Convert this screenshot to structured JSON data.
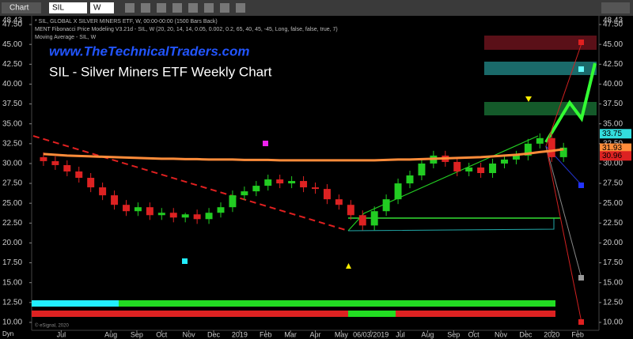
{
  "toolbar": {
    "app": "Chart",
    "symbol": "SIL",
    "interval": "W"
  },
  "watermark": "www.TheTechnicalTraders.com",
  "study_lines": [
    "* SIL, GLOBAL X SILVER MINERS ETF, W, 00:00-00:00 (1500 Bars Back)",
    "MENT Fibonacci Price Modeling V3.21d - SIL, W (20, 20, 14, 14, 0.05, 0.002, 0.2, 65, 40, 45, -45, Long, false, false, true, 7)",
    "Moving Average - SIL, W"
  ],
  "copyright": "© eSignal, 2020",
  "axis_corner_label": "Dyn",
  "chart_data": {
    "type": "candlestick",
    "title": "SIL - Silver Miners ETF Weekly Chart",
    "top_value": 48.43,
    "x": [
      0,
      1,
      2,
      3,
      4,
      5,
      6,
      7,
      8,
      9,
      10,
      11,
      12,
      13,
      14,
      15,
      16,
      17,
      18,
      19,
      20,
      21,
      22,
      23,
      24,
      25,
      26,
      27,
      28,
      29,
      30,
      31,
      32,
      33,
      34,
      35,
      36,
      37,
      38,
      39,
      40,
      41,
      42,
      43,
      44
    ],
    "open": [
      30.8,
      30.3,
      29.8,
      29.0,
      28.2,
      27.0,
      26.0,
      24.8,
      24.0,
      24.5,
      23.5,
      23.8,
      23.2,
      23.6,
      23.0,
      23.8,
      24.5,
      26.0,
      26.5,
      27.2,
      28.0,
      27.5,
      27.8,
      27.0,
      26.8,
      25.5,
      24.8,
      23.5,
      22.2,
      24.0,
      25.5,
      27.5,
      28.5,
      30.0,
      31.0,
      30.2,
      29.0,
      29.5,
      28.8,
      30.0,
      30.5,
      31.0,
      32.5,
      33.2,
      30.8
    ],
    "high": [
      31.4,
      30.9,
      30.4,
      29.6,
      28.8,
      27.6,
      26.6,
      25.4,
      25.1,
      25.1,
      24.4,
      24.4,
      23.8,
      24.2,
      24.4,
      25.1,
      26.6,
      27.1,
      27.8,
      28.6,
      28.6,
      28.4,
      28.4,
      27.6,
      27.4,
      26.1,
      25.4,
      24.1,
      24.6,
      26.1,
      28.1,
      29.1,
      30.6,
      31.6,
      31.6,
      30.8,
      30.1,
      30.1,
      30.6,
      31.1,
      31.6,
      33.1,
      33.8,
      33.8,
      32.6
    ],
    "low": [
      29.7,
      29.2,
      28.4,
      27.6,
      26.4,
      25.4,
      24.2,
      23.4,
      23.4,
      22.9,
      22.9,
      22.6,
      22.6,
      22.4,
      22.4,
      23.2,
      23.9,
      25.4,
      25.9,
      26.6,
      26.9,
      26.9,
      26.4,
      26.2,
      24.9,
      24.2,
      22.9,
      21.6,
      21.6,
      23.4,
      24.9,
      26.9,
      27.9,
      29.4,
      29.6,
      28.4,
      28.4,
      28.2,
      28.2,
      29.4,
      29.9,
      30.4,
      31.9,
      30.2,
      30.2
    ],
    "close": [
      30.3,
      29.8,
      29.0,
      28.2,
      27.0,
      26.0,
      24.8,
      24.0,
      24.5,
      23.5,
      23.8,
      23.2,
      23.6,
      23.0,
      23.8,
      24.5,
      26.0,
      26.5,
      27.2,
      28.0,
      27.5,
      27.8,
      27.0,
      26.8,
      25.5,
      24.8,
      23.5,
      22.2,
      24.0,
      25.5,
      27.5,
      28.5,
      30.0,
      31.0,
      30.2,
      29.0,
      29.5,
      28.8,
      30.0,
      30.5,
      31.0,
      32.5,
      33.2,
      30.8,
      32.0
    ],
    "up_color": "#22cc22",
    "down_color": "#dd2222",
    "series": [
      {
        "name": "Moving Average",
        "color": "#ff8c3a",
        "values": [
          31.2,
          31.1,
          31.0,
          30.95,
          30.9,
          30.85,
          30.8,
          30.75,
          30.7,
          30.65,
          30.6,
          30.6,
          30.55,
          30.55,
          30.5,
          30.5,
          30.5,
          30.45,
          30.45,
          30.45,
          30.4,
          30.4,
          30.4,
          30.4,
          30.4,
          30.4,
          30.4,
          30.4,
          30.4,
          30.45,
          30.5,
          30.5,
          30.55,
          30.6,
          30.65,
          30.7,
          30.75,
          30.8,
          30.9,
          31.0,
          31.1,
          31.25,
          31.45,
          31.6,
          31.8
        ]
      }
    ],
    "price_markers": [
      {
        "value": 33.75,
        "color": "#33dddd"
      },
      {
        "value": 31.93,
        "color": "#ff8c3a"
      },
      {
        "value": 30.96,
        "color": "#dd2222"
      }
    ],
    "xlim": [
      -1,
      47
    ],
    "xticks": [
      {
        "value": 1.5,
        "label": "Jul"
      },
      {
        "value": 5.7,
        "label": "Aug"
      },
      {
        "value": 7.9,
        "label": "Sep"
      },
      {
        "value": 10.0,
        "label": "Oct"
      },
      {
        "value": 12.3,
        "label": "Nov"
      },
      {
        "value": 14.4,
        "label": "Dec"
      },
      {
        "value": 16.6,
        "label": "2019"
      },
      {
        "value": 18.8,
        "label": "Feb"
      },
      {
        "value": 20.9,
        "label": "Mar"
      },
      {
        "value": 23.0,
        "label": "Apr"
      },
      {
        "value": 25.2,
        "label": "May"
      },
      {
        "value": 27.7,
        "label": "06/03/2019"
      },
      {
        "value": 30.2,
        "label": "Jul"
      },
      {
        "value": 32.5,
        "label": "Aug"
      },
      {
        "value": 34.7,
        "label": "Sep"
      },
      {
        "value": 36.4,
        "label": "Oct"
      },
      {
        "value": 38.7,
        "label": "Nov"
      },
      {
        "value": 40.8,
        "label": "Dec"
      },
      {
        "value": 43.0,
        "label": "2020"
      },
      {
        "value": 45.2,
        "label": "Feb"
      }
    ],
    "ylim": [
      9.0,
      48.6
    ],
    "yticks": [
      {
        "value": 10,
        "label": "10.00"
      },
      {
        "value": 12.5,
        "label": "12.50"
      },
      {
        "value": 15,
        "label": "15.00"
      },
      {
        "value": 17.5,
        "label": "17.50"
      },
      {
        "value": 20,
        "label": "20.00"
      },
      {
        "value": 22.5,
        "label": "22.50"
      },
      {
        "value": 25,
        "label": "25.00"
      },
      {
        "value": 27.5,
        "label": "27.50"
      },
      {
        "value": 30,
        "label": "30.00"
      },
      {
        "value": 32.5,
        "label": "32.50"
      },
      {
        "value": 35,
        "label": "35.00"
      },
      {
        "value": 37.5,
        "label": "37.50"
      },
      {
        "value": 40,
        "label": "40.00"
      },
      {
        "value": 42.5,
        "label": "42.50"
      },
      {
        "value": 45,
        "label": "45.00"
      },
      {
        "value": 47.5,
        "label": "47.50"
      }
    ]
  }
}
